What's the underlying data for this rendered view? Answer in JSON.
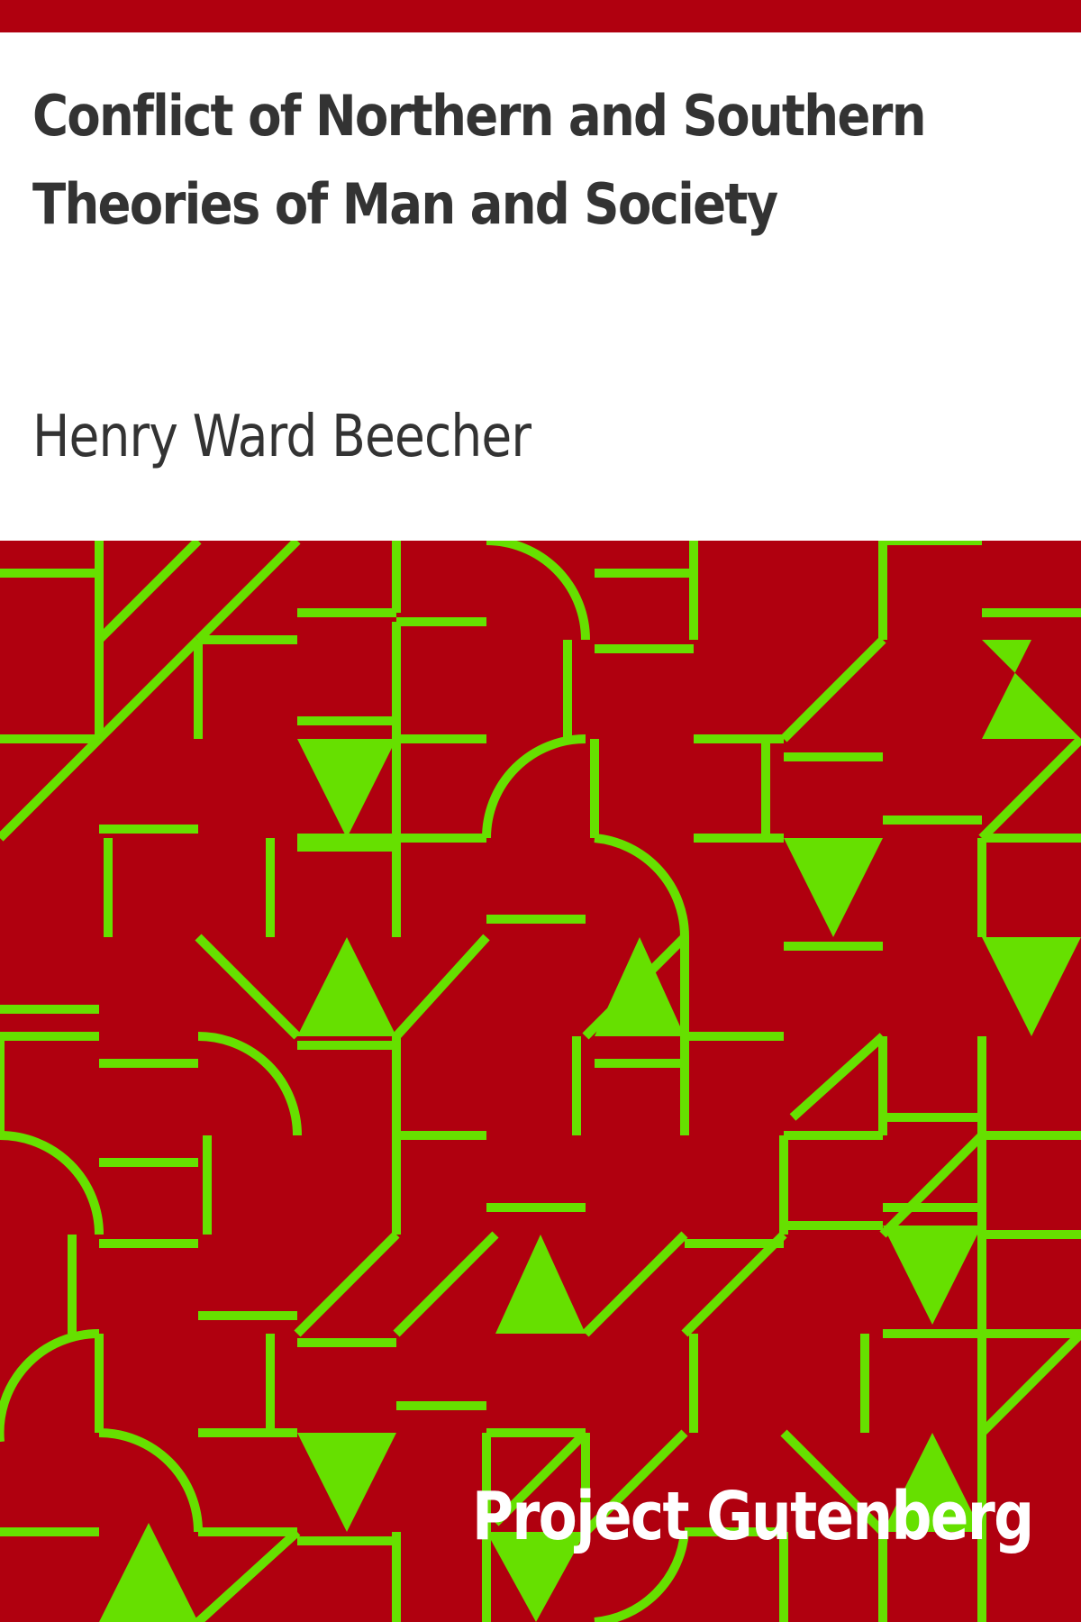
{
  "cover": {
    "title": "Conflict of Northern and Southern Theories of Man and Society",
    "author": "Henry Ward Beecher",
    "publisher": "Project Gutenberg"
  },
  "colors": {
    "background": "#ffffff",
    "band": "#b0000f",
    "pattern_bg": "#b0000f",
    "pattern_fg": "#66e000",
    "text": "#333333",
    "publisher_text": "#ffffff"
  }
}
